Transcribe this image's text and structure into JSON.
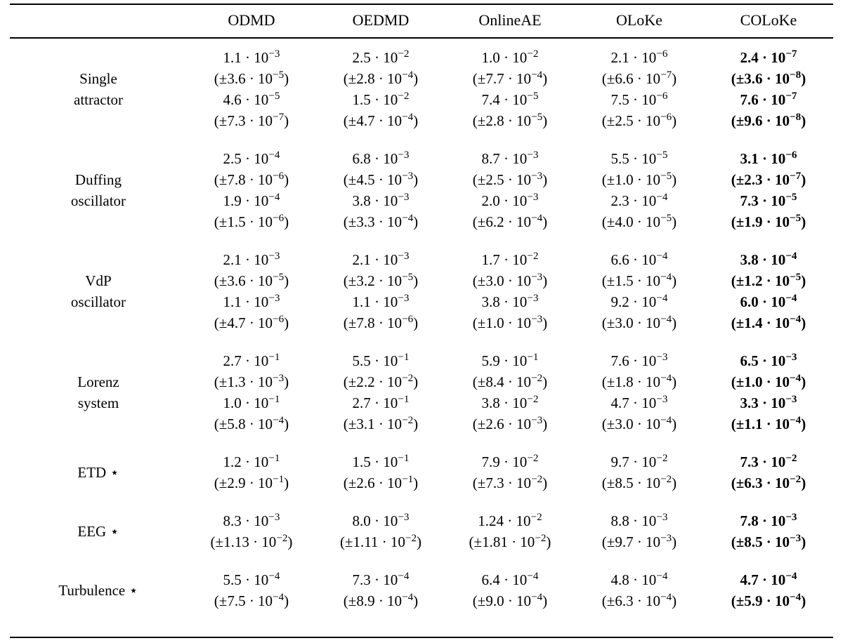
{
  "table": {
    "columns": [
      "",
      "ODMD",
      "OEDMD",
      "OnlineAE",
      "OLoKe",
      "COLoKe"
    ],
    "bold_column": "COLoKe",
    "rows": [
      {
        "label_lines": [
          "Single",
          "attractor"
        ],
        "cells": [
          {
            "lines": [
              "1.1 · 10^−3",
              "(±3.6 · 10^−5)",
              "4.6 · 10^−5",
              "(±7.3 · 10^−7)"
            ]
          },
          {
            "lines": [
              "2.5 · 10^−2",
              "(±2.8 · 10^−4)",
              "1.5 · 10^−2",
              "(±4.7 · 10^−4)"
            ]
          },
          {
            "lines": [
              "1.0 · 10^−2",
              "(±7.7 · 10^−4)",
              "7.4 · 10^−5",
              "(±2.8 · 10^−5)"
            ]
          },
          {
            "lines": [
              "2.1 · 10^−6",
              "(±6.6 · 10^−7)",
              "7.5 · 10^−6",
              "(±2.5 · 10^−6)"
            ]
          },
          {
            "lines": [
              "2.4 · 10^−7",
              "(±3.6 · 10^−8)",
              "7.6 · 10^−7",
              "(±9.6 · 10^−8)"
            ]
          }
        ]
      },
      {
        "label_lines": [
          "Duffing",
          "oscillator"
        ],
        "cells": [
          {
            "lines": [
              "2.5 · 10^−4",
              "(±7.8 · 10^−6)",
              "1.9 · 10^−4",
              "(±1.5 · 10^−6)"
            ]
          },
          {
            "lines": [
              "6.8 · 10^−3",
              "(±4.5 · 10^−3)",
              "3.8 · 10^−3",
              "(±3.3 · 10^−4)"
            ]
          },
          {
            "lines": [
              "8.7 · 10^−3",
              "(±2.5 · 10^−3)",
              "2.0 · 10^−3",
              "(±6.2 · 10^−4)"
            ]
          },
          {
            "lines": [
              "5.5 · 10^−5",
              "(±1.0 · 10^−5)",
              "2.3 · 10^−4",
              "(±4.0 · 10^−5)"
            ]
          },
          {
            "lines": [
              "3.1 · 10^−6",
              "(±2.3 · 10^−7)",
              "7.3 · 10^−5",
              "(±1.9 · 10^−5)"
            ]
          }
        ]
      },
      {
        "label_lines": [
          "VdP",
          "oscillator"
        ],
        "cells": [
          {
            "lines": [
              "2.1 · 10^−3",
              "(±3.6 · 10^−5)",
              "1.1 · 10^−3",
              "(±4.7 · 10^−6)"
            ]
          },
          {
            "lines": [
              "2.1 · 10^−3",
              "(±3.2 · 10^−5)",
              "1.1 · 10^−3",
              "(±7.8 · 10^−6)"
            ]
          },
          {
            "lines": [
              "1.7 · 10^−2",
              "(±3.0 · 10^−3)",
              "3.8 · 10^−3",
              "(±1.0 · 10^−3)"
            ]
          },
          {
            "lines": [
              "6.6 · 10^−4",
              "(±1.5 · 10^−4)",
              "9.2 · 10^−4",
              "(±3.0 · 10^−4)"
            ]
          },
          {
            "lines": [
              "3.8 · 10^−4",
              "(±1.2 · 10^−5)",
              "6.0 · 10^−4",
              "(±1.4 · 10^−4)"
            ]
          }
        ]
      },
      {
        "label_lines": [
          "Lorenz",
          "system"
        ],
        "cells": [
          {
            "lines": [
              "2.7 · 10^−1",
              "(±1.3 · 10^−3)",
              "1.0 · 10^−1",
              "(±5.8 · 10^−4)"
            ]
          },
          {
            "lines": [
              "5.5 · 10^−1",
              "(±2.2 · 10^−2)",
              "2.7 · 10^−1",
              "(±3.1 · 10^−2)"
            ]
          },
          {
            "lines": [
              "5.9 · 10^−1",
              "(±8.4 · 10^−2)",
              "3.8 · 10^−2",
              "(±2.6 · 10^−3)"
            ]
          },
          {
            "lines": [
              "7.6 · 10^−3",
              "(±1.8 · 10^−4)",
              "4.7 · 10^−3",
              "(±3.0 · 10^−4)"
            ]
          },
          {
            "lines": [
              "6.5 · 10^−3",
              "(±1.0 · 10^−4)",
              "3.3 · 10^−3",
              "(±1.1 · 10^−4)"
            ]
          }
        ]
      },
      {
        "label_lines": [
          "ETD ⋆"
        ],
        "cells": [
          {
            "lines": [
              "1.2 · 10^−1",
              "(±2.9 · 10^−1)"
            ]
          },
          {
            "lines": [
              "1.5 · 10^−1",
              "(±2.6 · 10^−1)"
            ]
          },
          {
            "lines": [
              "7.9 · 10^−2",
              "(±7.3 · 10^−2)"
            ]
          },
          {
            "lines": [
              "9.7 · 10^−2",
              "(±8.5 · 10^−2)"
            ]
          },
          {
            "lines": [
              "7.3 · 10^−2",
              "(±6.3 · 10^−2)"
            ]
          }
        ]
      },
      {
        "label_lines": [
          "EEG ⋆"
        ],
        "cells": [
          {
            "lines": [
              "8.3 · 10^−3",
              "(±1.13 · 10^−2)"
            ]
          },
          {
            "lines": [
              "8.0 · 10^−3",
              "(±1.11 · 10^−2)"
            ]
          },
          {
            "lines": [
              "1.24 · 10^−2",
              "(±1.81 · 10^−2)"
            ]
          },
          {
            "lines": [
              "8.8 · 10^−3",
              "(±9.7 · 10^−3)"
            ]
          },
          {
            "lines": [
              "7.8 · 10^−3",
              "(±8.5 · 10^−3)"
            ]
          }
        ]
      },
      {
        "label_lines": [
          "Turbulence ⋆"
        ],
        "cells": [
          {
            "lines": [
              "5.5 · 10^−4",
              "(±7.5 · 10^−4)"
            ]
          },
          {
            "lines": [
              "7.3 · 10^−4",
              "(±8.9 · 10^−4)"
            ]
          },
          {
            "lines": [
              "6.4 · 10^−4",
              "(±9.0 · 10^−4)"
            ]
          },
          {
            "lines": [
              "4.8 · 10^−4",
              "(±6.3 · 10^−4)"
            ]
          },
          {
            "lines": [
              "4.7 · 10^−4",
              "(±5.9 · 10^−4)"
            ]
          }
        ]
      }
    ]
  }
}
